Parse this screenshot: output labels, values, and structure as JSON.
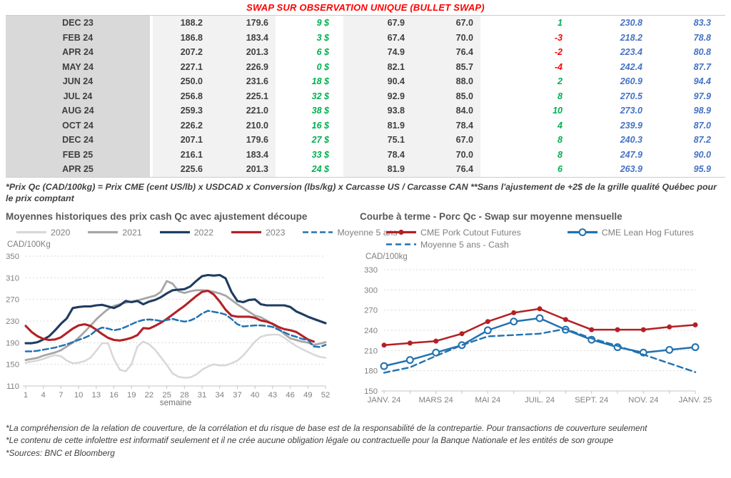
{
  "title": "SWAP SUR OBSERVATION UNIQUE (BULLET SWAP)",
  "table": {
    "rows": [
      {
        "month": "DEC 23",
        "qc_swap": "188.2",
        "qc_cash": "179.6",
        "ecart_cad": "9 $",
        "us_swap": "67.9",
        "us_cash": "67.0",
        "ecart_us": "1",
        "futures_cad": "230.8",
        "futures_us": "83.3"
      },
      {
        "month": "FEB 24",
        "qc_swap": "186.8",
        "qc_cash": "183.4",
        "ecart_cad": "3 $",
        "us_swap": "67.4",
        "us_cash": "70.0",
        "ecart_us": "-3",
        "futures_cad": "218.2",
        "futures_us": "78.8"
      },
      {
        "month": "APR 24",
        "qc_swap": "207.2",
        "qc_cash": "201.3",
        "ecart_cad": "6 $",
        "us_swap": "74.9",
        "us_cash": "76.4",
        "ecart_us": "-2",
        "futures_cad": "223.4",
        "futures_us": "80.8"
      },
      {
        "month": "MAY 24",
        "qc_swap": "227.1",
        "qc_cash": "226.9",
        "ecart_cad": "0 $",
        "us_swap": "82.1",
        "us_cash": "85.7",
        "ecart_us": "-4",
        "futures_cad": "242.4",
        "futures_us": "87.7"
      },
      {
        "month": "JUN 24",
        "qc_swap": "250.0",
        "qc_cash": "231.6",
        "ecart_cad": "18 $",
        "us_swap": "90.4",
        "us_cash": "88.0",
        "ecart_us": "2",
        "futures_cad": "260.9",
        "futures_us": "94.4"
      },
      {
        "month": "JUL 24",
        "qc_swap": "256.8",
        "qc_cash": "225.1",
        "ecart_cad": "32 $",
        "us_swap": "92.9",
        "us_cash": "85.0",
        "ecart_us": "8",
        "futures_cad": "270.5",
        "futures_us": "97.9"
      },
      {
        "month": "AUG 24",
        "qc_swap": "259.3",
        "qc_cash": "221.0",
        "ecart_cad": "38 $",
        "us_swap": "93.8",
        "us_cash": "84.0",
        "ecart_us": "10",
        "futures_cad": "273.0",
        "futures_us": "98.9"
      },
      {
        "month": "OCT 24",
        "qc_swap": "226.2",
        "qc_cash": "210.0",
        "ecart_cad": "16 $",
        "us_swap": "81.9",
        "us_cash": "78.4",
        "ecart_us": "4",
        "futures_cad": "239.9",
        "futures_us": "87.0"
      },
      {
        "month": "DEC 24",
        "qc_swap": "207.1",
        "qc_cash": "179.6",
        "ecart_cad": "27 $",
        "us_swap": "75.1",
        "us_cash": "67.0",
        "ecart_us": "8",
        "futures_cad": "240.3",
        "futures_us": "87.2"
      },
      {
        "month": "FEB 25",
        "qc_swap": "216.1",
        "qc_cash": "183.4",
        "ecart_cad": "33 $",
        "us_swap": "78.4",
        "us_cash": "70.0",
        "ecart_us": "8",
        "futures_cad": "247.9",
        "futures_us": "90.0"
      },
      {
        "month": "APR 25",
        "qc_swap": "225.6",
        "qc_cash": "201.3",
        "ecart_cad": "24 $",
        "us_swap": "81.9",
        "us_cash": "76.4",
        "ecart_us": "6",
        "futures_cad": "263.9",
        "futures_us": "95.9"
      }
    ]
  },
  "formula_footnote": "*Prix Qc (CAD/100kg) = Prix CME (cent US/lb) x USDCAD x Conversion (lbs/kg) x Carcasse US / Carcasse CAN **Sans l'ajustement de +2$ de la grille qualité Québec pour le prix comptant",
  "colors": {
    "title_red": "#FF0000",
    "table_green": "#00B050",
    "table_red": "#FF0000",
    "table_blue": "#4472C4",
    "month_col_bg": "#d9d9d9",
    "value_col_bg": "#f2f2f2",
    "navy": "#1F3C61",
    "dark_red": "#B42025",
    "mid_gray": "#A6A6A6",
    "light_gray": "#D8D8D8",
    "steel_blue": "#2272B0"
  },
  "chart_data": [
    {
      "type": "line",
      "title": "Moyennes historiques des prix cash Qc avec ajustement découpe",
      "ylabel": "CAD/100Kg",
      "xlabel": "semaine",
      "ylim": [
        110,
        350
      ],
      "yticks": [
        110,
        150,
        190,
        230,
        270,
        310,
        350
      ],
      "xticks": [
        1,
        4,
        7,
        10,
        13,
        16,
        19,
        22,
        25,
        28,
        31,
        34,
        37,
        40,
        43,
        46,
        49,
        52
      ],
      "x_start": 1,
      "grid": "dashed-horizontal",
      "legend_position": "top",
      "series": [
        {
          "name": "2020",
          "color": "#D8D8D8",
          "dash": null,
          "marker": null,
          "width": 2.6,
          "values": [
            153,
            155,
            157,
            160,
            164,
            167,
            165,
            157,
            152,
            153,
            156,
            162,
            175,
            189,
            189,
            160,
            140,
            137,
            150,
            183,
            192,
            187,
            177,
            163,
            149,
            133,
            127,
            125,
            126,
            131,
            140,
            146,
            150,
            148,
            148,
            152,
            157,
            166,
            179,
            192,
            201,
            204,
            205,
            205,
            199,
            191,
            184,
            178,
            173,
            168,
            164,
            162
          ]
        },
        {
          "name": "2021",
          "color": "#A6A6A6",
          "dash": null,
          "marker": null,
          "width": 2.8,
          "values": [
            158,
            160,
            162,
            166,
            169,
            172,
            176,
            183,
            190,
            199,
            210,
            221,
            233,
            243,
            252,
            258,
            261,
            264,
            266,
            268,
            271,
            274,
            277,
            284,
            304,
            299,
            285,
            282,
            285,
            287,
            287,
            286,
            284,
            281,
            277,
            269,
            261,
            254,
            247,
            240,
            237,
            231,
            224,
            216,
            206,
            198,
            195,
            192,
            190,
            186,
            188,
            191
          ]
        },
        {
          "name": "2022",
          "color": "#1F3C61",
          "dash": null,
          "marker": null,
          "width": 3.1,
          "values": [
            189,
            189,
            191,
            196,
            202,
            213,
            225,
            235,
            254,
            256,
            257,
            257,
            259,
            260,
            257,
            254,
            259,
            267,
            265,
            267,
            261,
            266,
            269,
            274,
            281,
            287,
            288,
            289,
            294,
            304,
            313,
            315,
            314,
            315,
            309,
            284,
            267,
            265,
            269,
            270,
            261,
            259,
            259,
            259,
            259,
            256,
            248,
            243,
            238,
            234,
            230,
            226
          ]
        },
        {
          "name": "2023",
          "color": "#B42025",
          "dash": null,
          "marker": null,
          "width": 3.1,
          "values": [
            221,
            210,
            202,
            197,
            195,
            196,
            200,
            208,
            216,
            222,
            224,
            221,
            214,
            206,
            199,
            195,
            194,
            196,
            199,
            204,
            217,
            216,
            221,
            227,
            234,
            242,
            250,
            258,
            267,
            276,
            284,
            286,
            279,
            266,
            251,
            240,
            238,
            238,
            238,
            236,
            231,
            229,
            225,
            219,
            215,
            213,
            210,
            203,
            196,
            192,
            null,
            null
          ]
        },
        {
          "name": "Moyenne 5 ans",
          "color": "#2272B0",
          "dash": "8 4",
          "marker": null,
          "width": 2.5,
          "values": [
            174,
            174,
            175,
            177,
            179,
            181,
            184,
            187,
            191,
            195,
            199,
            204,
            213,
            218,
            216,
            213,
            215,
            219,
            224,
            229,
            232,
            233,
            232,
            230,
            232,
            234,
            231,
            229,
            231,
            236,
            244,
            249,
            247,
            245,
            242,
            234,
            224,
            220,
            221,
            222,
            222,
            221,
            219,
            214,
            209,
            204,
            201,
            197,
            195,
            183,
            182,
            186
          ]
        }
      ]
    },
    {
      "type": "line",
      "title": "Courbe à terme - Porc Qc - Swap sur moyenne mensuelle",
      "ylabel": "CAD/100kg",
      "xlabel": "",
      "ylim": [
        150,
        330
      ],
      "yticks": [
        150,
        180,
        210,
        240,
        270,
        300,
        330
      ],
      "x_tick_labels": [
        "JANV. 24",
        "MARS 24",
        "MAI 24",
        "JUIL. 24",
        "SEPT. 24",
        "NOV. 24",
        "JANV. 25"
      ],
      "x_tick_label_positions": [
        0,
        2,
        4,
        6,
        8,
        10,
        12
      ],
      "n_points": 13,
      "grid": "dashed-horizontal",
      "legend_position": "top",
      "legend_rows": [
        [
          0,
          1
        ],
        [
          2
        ]
      ],
      "series": [
        {
          "name": "CME Pork Cutout Futures",
          "color": "#B42025",
          "dash": null,
          "marker": "filled-circle",
          "width": 2.5,
          "values": [
            218,
            221,
            224,
            235,
            253,
            266,
            272,
            256,
            241,
            241,
            241,
            245,
            248
          ]
        },
        {
          "name": "CME Lean Hog Futures",
          "color": "#2272B0",
          "dash": null,
          "marker": "open-circle",
          "width": 2.5,
          "values": [
            187,
            196,
            207,
            218,
            240,
            253,
            258,
            241,
            226,
            215,
            207,
            211,
            215
          ]
        },
        {
          "name": "Moyenne 5 ans - Cash",
          "color": "#2272B0",
          "dash": "8 5",
          "marker": null,
          "width": 2.4,
          "values": [
            177,
            185,
            202,
            218,
            231,
            233,
            235,
            242,
            228,
            217,
            204,
            191,
            178
          ]
        }
      ]
    }
  ],
  "footer": {
    "lines": [
      "*La compréhension de la relation de couverture, de la corrélation et du risque de base est de la responsabilité de la contrepartie. Pour transactions de couverture seulement",
      "*Le contenu de cette infolettre est informatif seulement et il ne crée aucune obligation légale ou contractuelle pour la Banque Nationale et les entités de son groupe",
      "*Sources: BNC et Bloomberg"
    ]
  }
}
